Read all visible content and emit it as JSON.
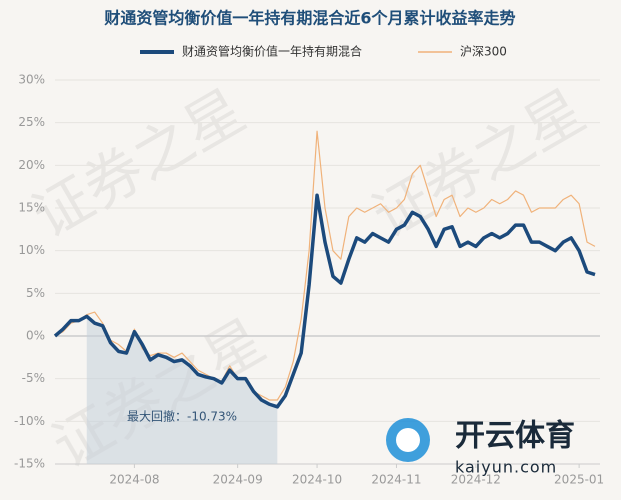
{
  "chart_data": {
    "type": "line",
    "title": "财通资管均衡价值一年持有期混合近6个月累计收益率走势",
    "categories": [
      null,
      null,
      null,
      null,
      null,
      null,
      null,
      null,
      null,
      null,
      "2024-08",
      null,
      null,
      null,
      null,
      null,
      null,
      null,
      null,
      null,
      null,
      null,
      null,
      "2024-09",
      null,
      null,
      null,
      null,
      null,
      null,
      null,
      null,
      null,
      "2024-10",
      null,
      null,
      null,
      null,
      null,
      null,
      null,
      null,
      null,
      "2024-11",
      null,
      null,
      null,
      null,
      null,
      null,
      null,
      null,
      null,
      "2024-12",
      null,
      null,
      null,
      null,
      null,
      null,
      null,
      null,
      null,
      null,
      null,
      null,
      "2025-01",
      null,
      null
    ],
    "series": [
      {
        "name": "财通资管均衡价值一年持有期混合",
        "color": "#1c4a7c",
        "values": [
          0,
          0.8,
          1.8,
          1.8,
          2.3,
          1.5,
          1.2,
          -0.8,
          -1.8,
          -2,
          0.5,
          -1,
          -2.8,
          -2.2,
          -2.5,
          -3,
          -2.8,
          -3.5,
          -4.5,
          -4.8,
          -5,
          -5.5,
          -4,
          -5,
          -5,
          -6.5,
          -7.5,
          -8,
          -8.3,
          -7,
          -4.5,
          -2,
          6,
          16.5,
          11,
          7,
          6.2,
          9,
          11.5,
          11,
          12,
          11.5,
          11,
          12.5,
          13,
          14.5,
          14,
          12.5,
          10.5,
          12.5,
          12.8,
          10.5,
          11,
          10.5,
          11.5,
          12,
          11.5,
          12,
          13,
          13,
          11,
          11,
          10.5,
          10,
          11,
          11.5,
          10,
          7.5,
          7.2
        ]
      },
      {
        "name": "沪深300",
        "color": "#f0b27a",
        "values": [
          0,
          0.5,
          1.5,
          1.8,
          2.5,
          2.8,
          1.5,
          -0.5,
          -1,
          -1.8,
          0.8,
          -1.5,
          -2.3,
          -2,
          -2,
          -2.5,
          -2,
          -3,
          -4,
          -4.5,
          -5,
          -5.3,
          -3.5,
          -5,
          -5,
          -6.5,
          -7,
          -7.5,
          -7.5,
          -6,
          -3,
          2,
          10,
          24,
          15,
          10,
          9,
          14,
          15,
          14.5,
          15,
          15.5,
          14.5,
          15,
          16,
          19,
          20,
          17,
          14,
          16,
          16.5,
          14,
          15,
          14.5,
          15,
          16,
          15.5,
          16,
          17,
          16.5,
          14.5,
          15,
          15,
          15,
          16,
          16.5,
          15.5,
          11,
          10.5
        ]
      }
    ],
    "ylim": [
      -15,
      30
    ],
    "yticks": [
      {
        "value": -15,
        "label": "-15%"
      },
      {
        "value": -10,
        "label": "-10%"
      },
      {
        "value": -5,
        "label": "-5%"
      },
      {
        "value": 0,
        "label": "0%"
      },
      {
        "value": 5,
        "label": "5%"
      },
      {
        "value": 10,
        "label": "10%"
      },
      {
        "value": 15,
        "label": "15%"
      },
      {
        "value": 20,
        "label": "20%"
      },
      {
        "value": 25,
        "label": "25%"
      },
      {
        "value": 30,
        "label": "30%"
      }
    ],
    "grid": true,
    "annotation": "最大回撤：-10.73%",
    "watermark": "证券之星",
    "logo_text": "开云体育",
    "logo_url": "kaiyun.com"
  }
}
